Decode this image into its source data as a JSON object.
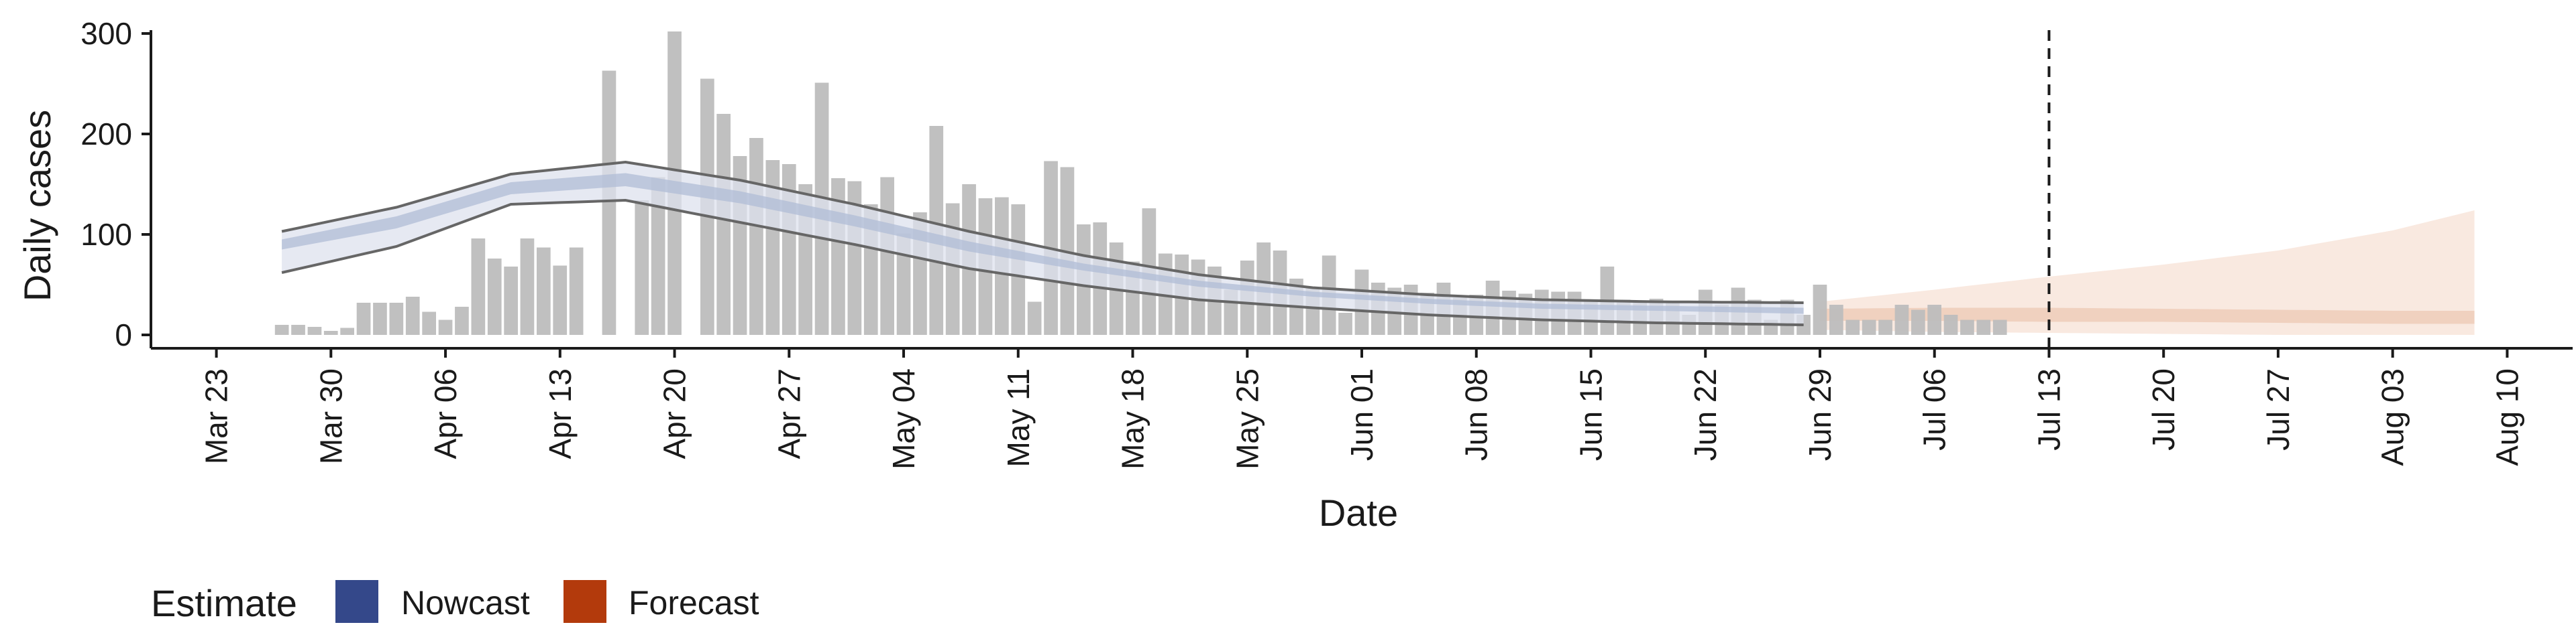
{
  "chart_data": {
    "type": "bar",
    "title": "",
    "xlabel": "Date",
    "ylabel": "Daily cases",
    "ylim": [
      0,
      300
    ],
    "y_ticks": [
      0,
      100,
      200,
      300
    ],
    "x_ticks": [
      "Mar 23",
      "Mar 30",
      "Apr 06",
      "Apr 13",
      "Apr 20",
      "Apr 27",
      "May 04",
      "May 11",
      "May 18",
      "May 25",
      "Jun 01",
      "Jun 08",
      "Jun 15",
      "Jun 22",
      "Jun 29",
      "Jul 06",
      "Jul 13",
      "Jul 20",
      "Jul 27",
      "Aug 03",
      "Aug 10"
    ],
    "x_tick_dates": [
      "2020-03-23",
      "2020-03-30",
      "2020-04-06",
      "2020-04-13",
      "2020-04-20",
      "2020-04-27",
      "2020-05-04",
      "2020-05-11",
      "2020-05-18",
      "2020-05-25",
      "2020-06-01",
      "2020-06-08",
      "2020-06-15",
      "2020-06-22",
      "2020-06-29",
      "2020-07-06",
      "2020-07-13",
      "2020-07-20",
      "2020-07-27",
      "2020-08-03",
      "2020-08-10"
    ],
    "xlim": [
      "2020-03-19",
      "2020-08-14"
    ],
    "vline_date": "2020-07-13",
    "grid": false,
    "legend": {
      "title": "Estimate",
      "position": "bottom-left",
      "items": [
        {
          "label": "Nowcast",
          "color": "#34488a"
        },
        {
          "label": "Forecast",
          "color": "#b33a0c"
        }
      ]
    },
    "colors": {
      "bars": "#bdbdbd",
      "nowcast_outer": "#dde2ee",
      "nowcast_inner": "#b0bcd6",
      "forecast_outer": "#f9e9e0",
      "forecast_inner": "#efcdb8",
      "bound_lines": "#666666",
      "axis": "#1a1a1a"
    },
    "daily_cases": {
      "start_date": "2020-03-27",
      "values": [
        10,
        10,
        8,
        4,
        7,
        32,
        32,
        32,
        38,
        23,
        15,
        28,
        96,
        76,
        68,
        96,
        87,
        69,
        87,
        0,
        263,
        0,
        134,
        157,
        302,
        0,
        255,
        220,
        178,
        196,
        174,
        170,
        150,
        251,
        156,
        153,
        130,
        157,
        101,
        122,
        208,
        131,
        150,
        136,
        137,
        130,
        33,
        173,
        167,
        110,
        112,
        92,
        73,
        126,
        81,
        80,
        75,
        68,
        45,
        74,
        92,
        84,
        56,
        47,
        79,
        22,
        65,
        52,
        47,
        50,
        42,
        52,
        37,
        40,
        54,
        44,
        41,
        45,
        43,
        43,
        33,
        68,
        35,
        34,
        36,
        32,
        20,
        45,
        30,
        47,
        35,
        15,
        35,
        20,
        50,
        30,
        15,
        15,
        15,
        30,
        25,
        30,
        20,
        15,
        15,
        15
      ]
    },
    "nowcast": {
      "start_date": "2020-03-27",
      "end_date": "2020-06-28",
      "key_dates": [
        "2020-03-27",
        "2020-04-03",
        "2020-04-10",
        "2020-04-17",
        "2020-04-24",
        "2020-05-01",
        "2020-05-08",
        "2020-05-15",
        "2020-05-22",
        "2020-05-29",
        "2020-06-05",
        "2020-06-12",
        "2020-06-19",
        "2020-06-28"
      ],
      "upper_90": [
        103,
        127,
        160,
        172,
        154,
        130,
        103,
        79,
        60,
        47,
        40,
        35,
        33,
        32
      ],
      "upper_50": [
        95,
        118,
        152,
        161,
        143,
        119,
        93,
        71,
        54,
        43,
        36,
        31,
        29,
        27
      ],
      "lower_50": [
        85,
        106,
        140,
        148,
        131,
        108,
        83,
        64,
        48,
        38,
        31,
        26,
        24,
        21
      ],
      "lower_90": [
        62,
        88,
        130,
        134,
        112,
        90,
        66,
        49,
        35,
        27,
        20,
        15,
        12,
        10
      ]
    },
    "forecast": {
      "start_date": "2020-06-29",
      "end_date": "2020-08-08",
      "key_dates": [
        "2020-06-29",
        "2020-07-06",
        "2020-07-13",
        "2020-07-20",
        "2020-07-27",
        "2020-08-03",
        "2020-08-08"
      ],
      "upper_90": [
        33,
        45,
        58,
        70,
        84,
        104,
        124
      ],
      "upper_50": [
        26,
        27,
        27,
        26,
        25,
        24,
        24
      ],
      "lower_50": [
        14,
        14,
        13,
        13,
        12,
        11,
        11
      ],
      "lower_90": [
        5,
        3,
        2,
        1,
        0,
        0,
        0
      ]
    }
  }
}
